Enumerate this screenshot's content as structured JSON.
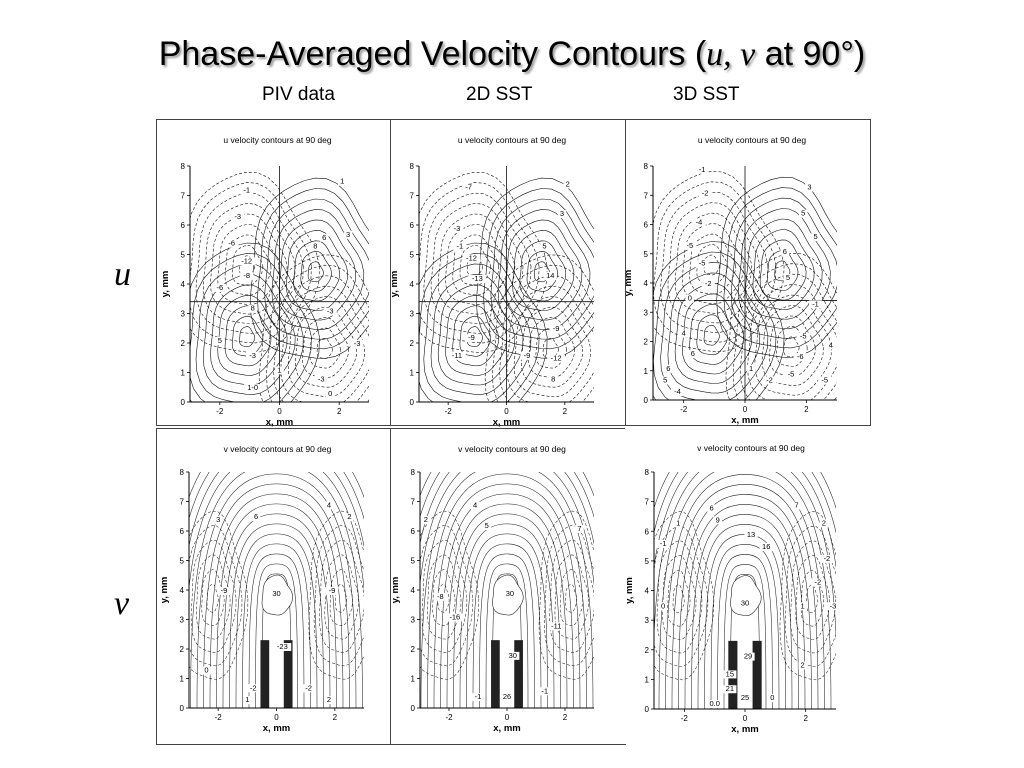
{
  "slide": {
    "title_main": "Phase-Averaged Velocity Contours (",
    "title_u": "u",
    "title_comma": ", ",
    "title_v": "v",
    "title_end": " at 90°)",
    "columns": [
      "PIV data",
      "2D SST",
      "3D SST"
    ],
    "rows": [
      "u",
      "v"
    ]
  },
  "chart_data": [
    {
      "type": "contour",
      "title": "u velocity contours at 90 deg",
      "xlabel": "x, mm",
      "ylabel": "y, mm",
      "xlim": [
        -3,
        3
      ],
      "ylim": [
        0,
        8
      ],
      "xticks": [
        "-2",
        "0",
        "2"
      ],
      "yticks": [
        "0",
        "1",
        "2",
        "3",
        "4",
        "5",
        "6",
        "7",
        "8"
      ],
      "contour_labels": [
        {
          "text": "1",
          "x": 2.1,
          "y": 7.4
        },
        {
          "text": "-1",
          "x": -1.1,
          "y": 7.1
        },
        {
          "text": "3",
          "x": 2.3,
          "y": 5.6
        },
        {
          "text": "-3",
          "x": -1.4,
          "y": 6.2
        },
        {
          "text": "6",
          "x": 1.5,
          "y": 5.5
        },
        {
          "text": "-6",
          "x": -1.6,
          "y": 5.3
        },
        {
          "text": "8",
          "x": 1.2,
          "y": 5.2
        },
        {
          "text": "-12",
          "x": -1.1,
          "y": 4.7
        },
        {
          "text": "-8",
          "x": -1.1,
          "y": 4.2
        },
        {
          "text": "-6",
          "x": -2.0,
          "y": 3.8
        },
        {
          "text": "8",
          "x": -0.9,
          "y": 3.1
        },
        {
          "text": "5",
          "x": -2.0,
          "y": 2.0
        },
        {
          "text": "-3",
          "x": -0.9,
          "y": 1.5
        },
        {
          "text": "1",
          "x": 0.0,
          "y": 1.0
        },
        {
          "text": "-3",
          "x": 1.4,
          "y": 0.7
        },
        {
          "text": "-3",
          "x": 2.6,
          "y": 1.9
        },
        {
          "text": "-3",
          "x": 1.7,
          "y": 3.0
        },
        {
          "text": "1-0",
          "x": -0.9,
          "y": 0.4
        },
        {
          "text": "0",
          "x": 1.7,
          "y": 0.2
        }
      ]
    },
    {
      "type": "contour",
      "title": "u velocity contours at 90 deg",
      "xlabel": "x, mm",
      "ylabel": "y, mm",
      "xlim": [
        -3,
        3
      ],
      "ylim": [
        0,
        8
      ],
      "xticks": [
        "-2",
        "0",
        "2"
      ],
      "yticks": [
        "0",
        "1",
        "2",
        "3",
        "4",
        "5",
        "6",
        "7",
        "8"
      ],
      "contour_labels": [
        {
          "text": "2",
          "x": 2.1,
          "y": 7.3
        },
        {
          "text": "-7",
          "x": -1.3,
          "y": 7.2
        },
        {
          "text": "3",
          "x": 1.9,
          "y": 6.3
        },
        {
          "text": "-3",
          "x": -1.7,
          "y": 5.8
        },
        {
          "text": "5",
          "x": 1.3,
          "y": 5.2
        },
        {
          "text": "-1",
          "x": -1.6,
          "y": 5.2
        },
        {
          "text": "14",
          "x": 1.5,
          "y": 4.2
        },
        {
          "text": "-12",
          "x": -1.2,
          "y": 4.8
        },
        {
          "text": "-13",
          "x": -1.0,
          "y": 4.1
        },
        {
          "text": "-9",
          "x": -1.2,
          "y": 2.1
        },
        {
          "text": "-11",
          "x": -1.7,
          "y": 1.5
        },
        {
          "text": "-12",
          "x": 1.7,
          "y": 1.4
        },
        {
          "text": "-9",
          "x": 1.7,
          "y": 2.4
        },
        {
          "text": "-9",
          "x": 0.7,
          "y": 1.5
        },
        {
          "text": "8",
          "x": 1.6,
          "y": 0.7
        }
      ]
    },
    {
      "type": "contour",
      "title": "u velocity contours at 90 deg",
      "xlabel": "x, mm",
      "ylabel": "y, mm",
      "xlim": [
        -3,
        3
      ],
      "ylim": [
        0,
        8
      ],
      "xticks": [
        "-2",
        "0",
        "2"
      ],
      "yticks": [
        "0",
        "1",
        "2",
        "3",
        "4",
        "5",
        "6",
        "7",
        "8"
      ],
      "contour_labels": [
        {
          "text": "-1",
          "x": -1.4,
          "y": 7.8
        },
        {
          "text": "3",
          "x": 2.1,
          "y": 7.2
        },
        {
          "text": "-2",
          "x": -1.3,
          "y": 7.0
        },
        {
          "text": "5",
          "x": 1.9,
          "y": 6.3
        },
        {
          "text": "-4",
          "x": -1.5,
          "y": 6.0
        },
        {
          "text": "5",
          "x": 2.3,
          "y": 5.5
        },
        {
          "text": "-5",
          "x": -1.8,
          "y": 5.2
        },
        {
          "text": "6",
          "x": 1.3,
          "y": 5.0
        },
        {
          "text": "-5",
          "x": -1.4,
          "y": 4.6
        },
        {
          "text": "5",
          "x": 1.4,
          "y": 4.1
        },
        {
          "text": "-2",
          "x": -1.2,
          "y": 3.9
        },
        {
          "text": "-1",
          "x": 2.3,
          "y": 3.2
        },
        {
          "text": "0",
          "x": -1.8,
          "y": 3.4
        },
        {
          "text": "-5",
          "x": 1.9,
          "y": 2.1
        },
        {
          "text": "4",
          "x": 2.8,
          "y": 1.8
        },
        {
          "text": "-6",
          "x": 1.8,
          "y": 1.4
        },
        {
          "text": "-5",
          "x": 1.5,
          "y": 0.8
        },
        {
          "text": "-5",
          "x": 2.6,
          "y": 0.6
        },
        {
          "text": "4",
          "x": -2.0,
          "y": 2.2
        },
        {
          "text": "6",
          "x": -1.7,
          "y": 1.5
        },
        {
          "text": "6",
          "x": -2.5,
          "y": 1.0
        },
        {
          "text": "5",
          "x": -2.6,
          "y": 0.6
        },
        {
          "text": "1",
          "x": 0.2,
          "y": 1.0
        },
        {
          "text": "-2",
          "x": 0.8,
          "y": 0.6
        },
        {
          "text": "-4",
          "x": -2.2,
          "y": 0.2
        }
      ]
    },
    {
      "type": "contour",
      "title": "v velocity contours at 90 deg",
      "xlabel": "x, mm",
      "ylabel": "y, mm",
      "xlim": [
        -3,
        3
      ],
      "ylim": [
        0,
        8
      ],
      "xticks": [
        "-2",
        "0",
        "2"
      ],
      "yticks": [
        "0",
        "1",
        "2",
        "3",
        "4",
        "5",
        "6",
        "7",
        "8"
      ],
      "contour_labels": [
        {
          "text": "2",
          "x": 2.5,
          "y": 6.4
        },
        {
          "text": "3",
          "x": -2.0,
          "y": 6.3
        },
        {
          "text": "6",
          "x": -0.7,
          "y": 6.4
        },
        {
          "text": "4",
          "x": 1.8,
          "y": 6.8
        },
        {
          "text": "-9",
          "x": -1.8,
          "y": 3.9
        },
        {
          "text": "-9",
          "x": 1.9,
          "y": 3.9
        },
        {
          "text": "30",
          "x": 0.0,
          "y": 3.8
        },
        {
          "text": "-23",
          "x": 0.2,
          "y": 2.0
        },
        {
          "text": "0",
          "x": -2.4,
          "y": 1.2
        },
        {
          "text": "-2",
          "x": 1.1,
          "y": 0.6
        },
        {
          "text": "2",
          "x": 1.8,
          "y": 0.2
        },
        {
          "text": "1",
          "x": -1.0,
          "y": 0.2
        },
        {
          "text": "-2",
          "x": -0.8,
          "y": 0.6
        }
      ]
    },
    {
      "type": "contour",
      "title": "v velocity contours at 90 deg",
      "xlabel": "x, mm",
      "ylabel": "y, mm",
      "xlim": [
        -3,
        3
      ],
      "ylim": [
        0,
        8
      ],
      "xticks": [
        "-2",
        "0",
        "2"
      ],
      "yticks": [
        "0",
        "1",
        "2",
        "3",
        "4",
        "5",
        "6",
        "7",
        "8"
      ],
      "contour_labels": [
        {
          "text": "2",
          "x": -2.8,
          "y": 6.3
        },
        {
          "text": "4",
          "x": -1.1,
          "y": 6.8
        },
        {
          "text": "7",
          "x": 2.5,
          "y": 6.0
        },
        {
          "text": "5",
          "x": -0.7,
          "y": 6.1
        },
        {
          "text": "-8",
          "x": -2.3,
          "y": 3.7
        },
        {
          "text": "-16",
          "x": -1.8,
          "y": 3.0
        },
        {
          "text": "30",
          "x": 0.1,
          "y": 3.8
        },
        {
          "text": "-11",
          "x": 1.7,
          "y": 2.7
        },
        {
          "text": "30",
          "x": 0.2,
          "y": 1.7
        },
        {
          "text": "-1",
          "x": 1.3,
          "y": 0.5
        },
        {
          "text": "26",
          "x": 0.0,
          "y": 0.3
        },
        {
          "text": "-1",
          "x": -1.0,
          "y": 0.3
        }
      ]
    },
    {
      "type": "contour",
      "title": "v velocity contours at 90 deg",
      "xlabel": "x, mm",
      "ylabel": "y, mm",
      "xlim": [
        -3,
        3
      ],
      "ylim": [
        0,
        8
      ],
      "xticks": [
        "-2",
        "0",
        "2"
      ],
      "yticks": [
        "0",
        "1",
        "2",
        "3",
        "4",
        "5",
        "6",
        "7",
        "8"
      ],
      "contour_labels": [
        {
          "text": "7",
          "x": 1.7,
          "y": 6.8
        },
        {
          "text": "6",
          "x": -1.1,
          "y": 6.7
        },
        {
          "text": "1",
          "x": -2.2,
          "y": 6.2
        },
        {
          "text": "9",
          "x": -0.9,
          "y": 6.3
        },
        {
          "text": "2",
          "x": 2.6,
          "y": 6.2
        },
        {
          "text": "13",
          "x": 0.2,
          "y": 5.8
        },
        {
          "text": "16",
          "x": 0.7,
          "y": 5.4
        },
        {
          "text": "-1",
          "x": -2.7,
          "y": 5.5
        },
        {
          "text": "-2",
          "x": 2.7,
          "y": 5.0
        },
        {
          "text": "-2",
          "x": 2.4,
          "y": 4.2
        },
        {
          "text": "-3",
          "x": 2.9,
          "y": 3.4
        },
        {
          "text": "0",
          "x": -2.7,
          "y": 3.4
        },
        {
          "text": "30",
          "x": 0.0,
          "y": 3.5
        },
        {
          "text": "1",
          "x": 1.9,
          "y": 3.4
        },
        {
          "text": "29",
          "x": 0.1,
          "y": 1.7
        },
        {
          "text": "15",
          "x": -0.5,
          "y": 1.1
        },
        {
          "text": "2",
          "x": 1.9,
          "y": 1.4
        },
        {
          "text": "25",
          "x": 0.0,
          "y": 0.3
        },
        {
          "text": "0.0",
          "x": -1.0,
          "y": 0.1
        },
        {
          "text": "21",
          "x": -0.5,
          "y": 0.6
        },
        {
          "text": "0",
          "x": 0.9,
          "y": 0.3
        }
      ]
    }
  ]
}
